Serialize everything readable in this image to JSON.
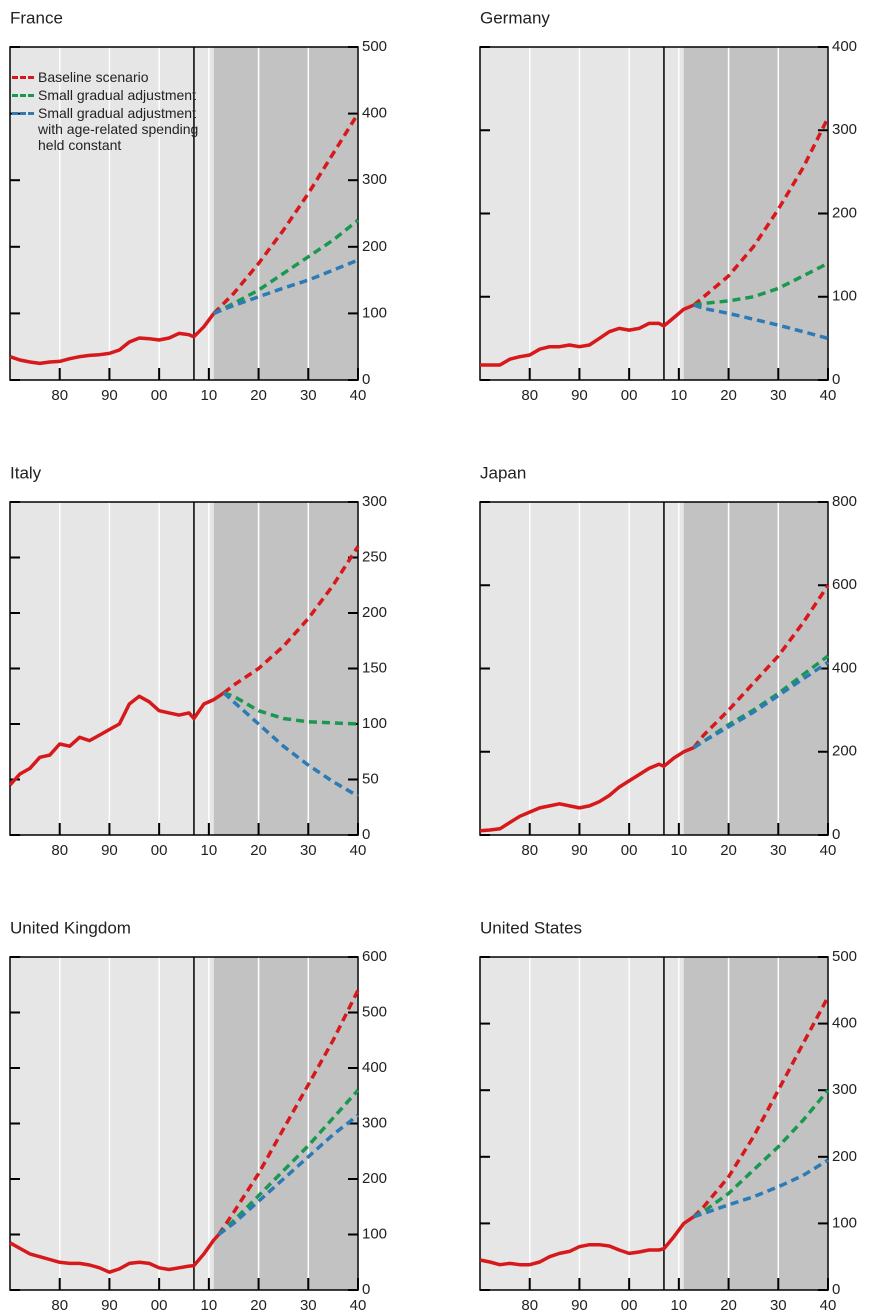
{
  "chart_data": [
    {
      "type": "line",
      "title": "France",
      "xlim": [
        1970,
        2040
      ],
      "ylim": [
        0,
        500
      ],
      "yticks": [
        0,
        100,
        200,
        300,
        400,
        500
      ],
      "xticks": [
        1980,
        {
          "value": 1990,
          "label": "90"
        },
        {
          "value": 2000,
          "label": "00"
        },
        {
          "value": 2010,
          "label": "10"
        },
        {
          "value": 2020,
          "label": "20"
        },
        {
          "value": 2030,
          "label": "30"
        },
        {
          "value": 2040,
          "label": "40"
        }
      ],
      "grid": "x",
      "shaded_xlim": [
        2011,
        2040
      ],
      "vline_x": 2007,
      "legend": "upper left",
      "series": [
        {
          "color": "#d7191c",
          "dashed": false,
          "x": [
            1970,
            1972,
            1974,
            1976,
            1978,
            1980,
            1982,
            1984,
            1986,
            1988,
            1990,
            1992,
            1994,
            1996,
            1998,
            2000,
            2002,
            2004,
            2006,
            2007,
            2009,
            2011
          ],
          "values": [
            35,
            30,
            27,
            25,
            27,
            28,
            32,
            35,
            37,
            38,
            40,
            45,
            57,
            63,
            62,
            60,
            63,
            70,
            68,
            65,
            80,
            100
          ]
        },
        {
          "name": "Baseline scenario",
          "color": "#d7191c",
          "dashed": true,
          "x": [
            2011,
            2015,
            2020,
            2025,
            2030,
            2035,
            2040
          ],
          "values": [
            100,
            130,
            175,
            225,
            280,
            340,
            400
          ]
        },
        {
          "name": "Small gradual adjustment",
          "color": "#1a9850",
          "dashed": true,
          "x": [
            2011,
            2015,
            2020,
            2025,
            2030,
            2035,
            2040
          ],
          "values": [
            100,
            115,
            135,
            160,
            185,
            210,
            240
          ]
        },
        {
          "name": "Small gradual adjustment with age-related spending held constant",
          "color": "#2c7bb6",
          "dashed": true,
          "x": [
            2011,
            2015,
            2020,
            2025,
            2030,
            2035,
            2040
          ],
          "values": [
            100,
            112,
            125,
            138,
            150,
            165,
            180
          ]
        }
      ]
    },
    {
      "type": "line",
      "title": "Germany",
      "xlim": [
        1970,
        2040
      ],
      "ylim": [
        0,
        400
      ],
      "yticks": [
        0,
        100,
        200,
        300,
        400
      ],
      "xticks": [
        1980,
        {
          "value": 1990,
          "label": "90"
        },
        {
          "value": 2000,
          "label": "00"
        },
        {
          "value": 2010,
          "label": "10"
        },
        {
          "value": 2020,
          "label": "20"
        },
        {
          "value": 2030,
          "label": "30"
        },
        {
          "value": 2040,
          "label": "40"
        }
      ],
      "grid": "x",
      "shaded_xlim": [
        2011,
        2040
      ],
      "vline_x": 2007,
      "series": [
        {
          "color": "#d7191c",
          "dashed": false,
          "x": [
            1970,
            1972,
            1974,
            1976,
            1978,
            1980,
            1982,
            1984,
            1986,
            1988,
            1990,
            1992,
            1994,
            1996,
            1998,
            2000,
            2002,
            2004,
            2006,
            2007,
            2009,
            2011,
            2013
          ],
          "values": [
            18,
            18,
            18,
            25,
            28,
            30,
            37,
            40,
            40,
            42,
            40,
            42,
            50,
            58,
            62,
            60,
            62,
            68,
            68,
            65,
            75,
            85,
            90
          ]
        },
        {
          "color": "#d7191c",
          "dashed": true,
          "x": [
            2013,
            2015,
            2020,
            2025,
            2030,
            2035,
            2040
          ],
          "values": [
            90,
            100,
            125,
            160,
            205,
            255,
            315
          ]
        },
        {
          "color": "#1a9850",
          "dashed": true,
          "x": [
            2013,
            2015,
            2020,
            2025,
            2030,
            2035,
            2040
          ],
          "values": [
            90,
            92,
            95,
            100,
            110,
            125,
            140
          ]
        },
        {
          "color": "#2c7bb6",
          "dashed": true,
          "x": [
            2013,
            2015,
            2020,
            2025,
            2030,
            2035,
            2040
          ],
          "values": [
            90,
            86,
            80,
            73,
            66,
            58,
            50
          ]
        }
      ]
    },
    {
      "type": "line",
      "title": "Italy",
      "xlim": [
        1970,
        2040
      ],
      "ylim": [
        0,
        300
      ],
      "yticks": [
        0,
        50,
        100,
        150,
        200,
        250,
        300
      ],
      "xticks": [
        1980,
        {
          "value": 1990,
          "label": "90"
        },
        {
          "value": 2000,
          "label": "00"
        },
        {
          "value": 2010,
          "label": "10"
        },
        {
          "value": 2020,
          "label": "20"
        },
        {
          "value": 2030,
          "label": "30"
        },
        {
          "value": 2040,
          "label": "40"
        }
      ],
      "grid": "x",
      "shaded_xlim": [
        2011,
        2040
      ],
      "vline_x": 2007,
      "series": [
        {
          "color": "#d7191c",
          "dashed": false,
          "x": [
            1970,
            1972,
            1974,
            1976,
            1978,
            1980,
            1982,
            1984,
            1986,
            1988,
            1990,
            1992,
            1994,
            1996,
            1998,
            2000,
            2002,
            2004,
            2006,
            2007,
            2009,
            2011,
            2013
          ],
          "values": [
            45,
            55,
            60,
            70,
            72,
            82,
            80,
            88,
            85,
            90,
            95,
            100,
            118,
            125,
            120,
            112,
            110,
            108,
            110,
            105,
            118,
            122,
            128
          ]
        },
        {
          "color": "#d7191c",
          "dashed": true,
          "x": [
            2013,
            2015,
            2020,
            2025,
            2030,
            2035,
            2040
          ],
          "values": [
            128,
            135,
            150,
            170,
            195,
            225,
            260
          ]
        },
        {
          "color": "#1a9850",
          "dashed": true,
          "x": [
            2013,
            2015,
            2020,
            2025,
            2030,
            2035,
            2040
          ],
          "values": [
            128,
            125,
            112,
            105,
            102,
            101,
            100
          ]
        },
        {
          "color": "#2c7bb6",
          "dashed": true,
          "x": [
            2013,
            2015,
            2020,
            2025,
            2030,
            2035,
            2040
          ],
          "values": [
            128,
            120,
            100,
            80,
            63,
            48,
            35
          ]
        }
      ]
    },
    {
      "type": "line",
      "title": "Japan",
      "xlim": [
        1970,
        2040
      ],
      "ylim": [
        0,
        800
      ],
      "yticks": [
        0,
        200,
        400,
        600,
        800
      ],
      "xticks": [
        1980,
        {
          "value": 1990,
          "label": "90"
        },
        {
          "value": 2000,
          "label": "00"
        },
        {
          "value": 2010,
          "label": "10"
        },
        {
          "value": 2020,
          "label": "20"
        },
        {
          "value": 2030,
          "label": "30"
        },
        {
          "value": 2040,
          "label": "40"
        }
      ],
      "grid": "x",
      "shaded_xlim": [
        2011,
        2040
      ],
      "vline_x": 2007,
      "series": [
        {
          "color": "#d7191c",
          "dashed": false,
          "x": [
            1970,
            1972,
            1974,
            1976,
            1978,
            1980,
            1982,
            1984,
            1986,
            1988,
            1990,
            1992,
            1994,
            1996,
            1998,
            2000,
            2002,
            2004,
            2006,
            2007,
            2009,
            2011,
            2013
          ],
          "values": [
            10,
            12,
            15,
            30,
            45,
            55,
            65,
            70,
            75,
            70,
            65,
            70,
            80,
            95,
            115,
            130,
            145,
            160,
            170,
            165,
            185,
            200,
            210
          ]
        },
        {
          "color": "#d7191c",
          "dashed": true,
          "x": [
            2013,
            2015,
            2020,
            2025,
            2030,
            2035,
            2040
          ],
          "values": [
            210,
            240,
            300,
            365,
            430,
            510,
            600
          ]
        },
        {
          "color": "#1a9850",
          "dashed": true,
          "x": [
            2013,
            2015,
            2020,
            2025,
            2030,
            2035,
            2040
          ],
          "values": [
            210,
            225,
            265,
            300,
            340,
            385,
            430
          ]
        },
        {
          "color": "#2c7bb6",
          "dashed": true,
          "x": [
            2013,
            2015,
            2020,
            2025,
            2030,
            2035,
            2040
          ],
          "values": [
            210,
            225,
            260,
            295,
            335,
            375,
            415
          ]
        }
      ]
    },
    {
      "type": "line",
      "title": "United Kingdom",
      "xlim": [
        1970,
        2040
      ],
      "ylim": [
        0,
        600
      ],
      "yticks": [
        0,
        100,
        200,
        300,
        400,
        500,
        600
      ],
      "xticks": [
        1980,
        {
          "value": 1990,
          "label": "90"
        },
        {
          "value": 2000,
          "label": "00"
        },
        {
          "value": 2010,
          "label": "10"
        },
        {
          "value": 2020,
          "label": "20"
        },
        {
          "value": 2030,
          "label": "30"
        },
        {
          "value": 2040,
          "label": "40"
        }
      ],
      "grid": "x",
      "shaded_xlim": [
        2011,
        2040
      ],
      "vline_x": 2007,
      "series": [
        {
          "color": "#d7191c",
          "dashed": false,
          "x": [
            1970,
            1972,
            1974,
            1976,
            1978,
            1980,
            1982,
            1984,
            1986,
            1988,
            1990,
            1992,
            1994,
            1996,
            1998,
            2000,
            2002,
            2004,
            2006,
            2007,
            2009,
            2011,
            2012
          ],
          "values": [
            85,
            75,
            65,
            60,
            55,
            50,
            48,
            48,
            45,
            40,
            32,
            38,
            48,
            50,
            48,
            40,
            37,
            40,
            43,
            44,
            65,
            90,
            100
          ]
        },
        {
          "color": "#d7191c",
          "dashed": true,
          "x": [
            2012,
            2015,
            2020,
            2025,
            2030,
            2035,
            2040
          ],
          "values": [
            100,
            140,
            210,
            290,
            370,
            450,
            540
          ]
        },
        {
          "color": "#1a9850",
          "dashed": true,
          "x": [
            2012,
            2015,
            2020,
            2025,
            2030,
            2035,
            2040
          ],
          "values": [
            100,
            125,
            170,
            215,
            260,
            310,
            360
          ]
        },
        {
          "color": "#2c7bb6",
          "dashed": true,
          "x": [
            2012,
            2015,
            2020,
            2025,
            2030,
            2035,
            2040
          ],
          "values": [
            100,
            120,
            160,
            200,
            240,
            280,
            315
          ]
        }
      ]
    },
    {
      "type": "line",
      "title": "United States",
      "xlim": [
        1970,
        2040
      ],
      "ylim": [
        0,
        500
      ],
      "yticks": [
        0,
        100,
        200,
        300,
        400,
        500
      ],
      "xticks": [
        1980,
        {
          "value": 1990,
          "label": "90"
        },
        {
          "value": 2000,
          "label": "00"
        },
        {
          "value": 2010,
          "label": "10"
        },
        {
          "value": 2020,
          "label": "20"
        },
        {
          "value": 2030,
          "label": "30"
        },
        {
          "value": 2040,
          "label": "40"
        }
      ],
      "grid": "x",
      "shaded_xlim": [
        2011,
        2040
      ],
      "vline_x": 2007,
      "series": [
        {
          "color": "#d7191c",
          "dashed": false,
          "x": [
            1970,
            1972,
            1974,
            1976,
            1978,
            1980,
            1982,
            1984,
            1986,
            1988,
            1990,
            1992,
            1994,
            1996,
            1998,
            2000,
            2002,
            2004,
            2006,
            2007,
            2009,
            2011,
            2013
          ],
          "values": [
            45,
            42,
            38,
            40,
            38,
            38,
            42,
            50,
            55,
            58,
            65,
            68,
            68,
            66,
            60,
            55,
            57,
            60,
            60,
            62,
            80,
            100,
            110
          ]
        },
        {
          "color": "#d7191c",
          "dashed": true,
          "x": [
            2013,
            2015,
            2020,
            2025,
            2030,
            2035,
            2040
          ],
          "values": [
            110,
            125,
            170,
            230,
            300,
            370,
            440
          ]
        },
        {
          "color": "#1a9850",
          "dashed": true,
          "x": [
            2013,
            2015,
            2020,
            2025,
            2030,
            2035,
            2040
          ],
          "values": [
            110,
            118,
            145,
            180,
            215,
            255,
            300
          ]
        },
        {
          "color": "#2c7bb6",
          "dashed": true,
          "x": [
            2013,
            2015,
            2020,
            2025,
            2030,
            2035,
            2040
          ],
          "values": [
            110,
            115,
            128,
            140,
            155,
            172,
            195
          ]
        }
      ]
    }
  ]
}
